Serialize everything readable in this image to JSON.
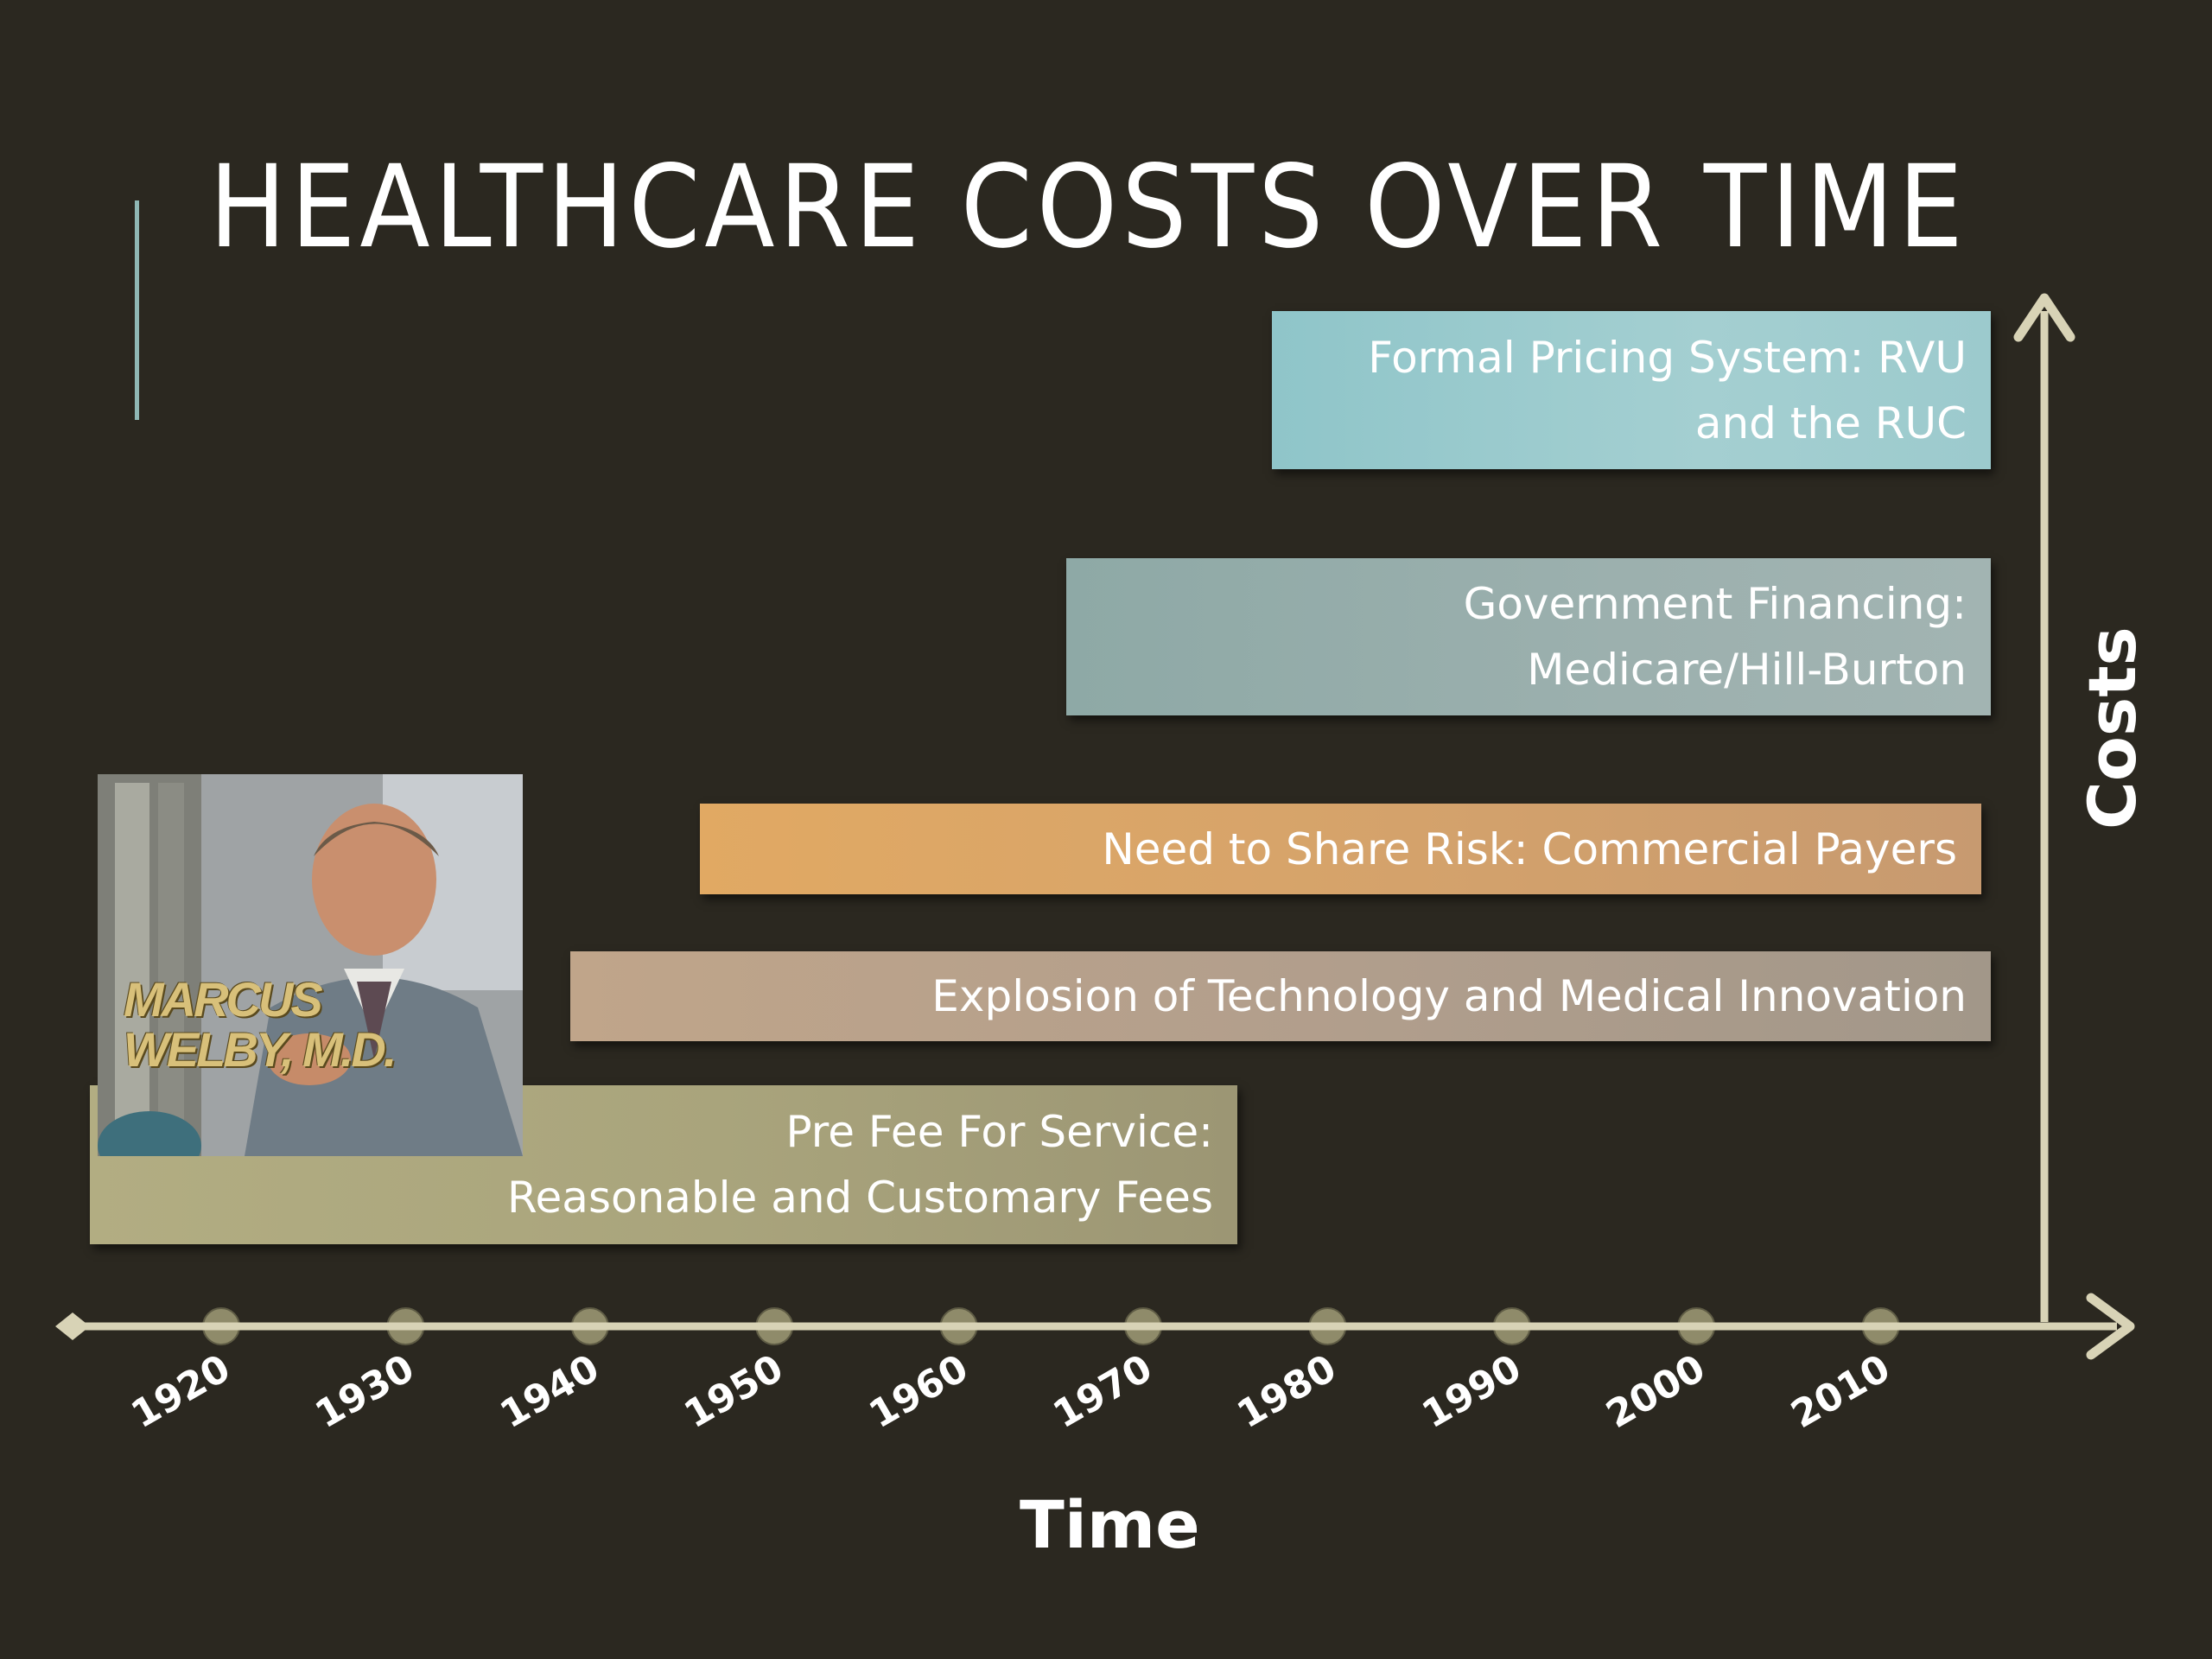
{
  "slide": {
    "title": "HEALTHCARE COSTS OVER TIME"
  },
  "bars": {
    "rvu": {
      "line1": "Formal Pricing System:  RVU",
      "line2": "and the RUC"
    },
    "gov": {
      "line1": "Government Financing:",
      "line2": "Medicare/Hill-Burton"
    },
    "risk": {
      "line1": "Need to Share Risk:  Commercial Payers"
    },
    "tech": {
      "line1": "Explosion of Technology and Medical Innovation"
    },
    "fee": {
      "line1": "Pre Fee For Service:",
      "line2": "Reasonable and Customary Fees"
    }
  },
  "photo": {
    "caption_line1": "MARCUS",
    "caption_line2": "WELBY, M.D."
  },
  "axis": {
    "x_title": "Time",
    "y_title": "Costs",
    "ticks": [
      "1920",
      "1930",
      "1940",
      "1950",
      "1960",
      "1970",
      "1980",
      "1990",
      "2000",
      "2010"
    ]
  },
  "colors": {
    "background": "#2b2820",
    "axis": "#d8d3b6",
    "tick_marker": "#8f8b6a",
    "accent": "#8fb7b4"
  }
}
